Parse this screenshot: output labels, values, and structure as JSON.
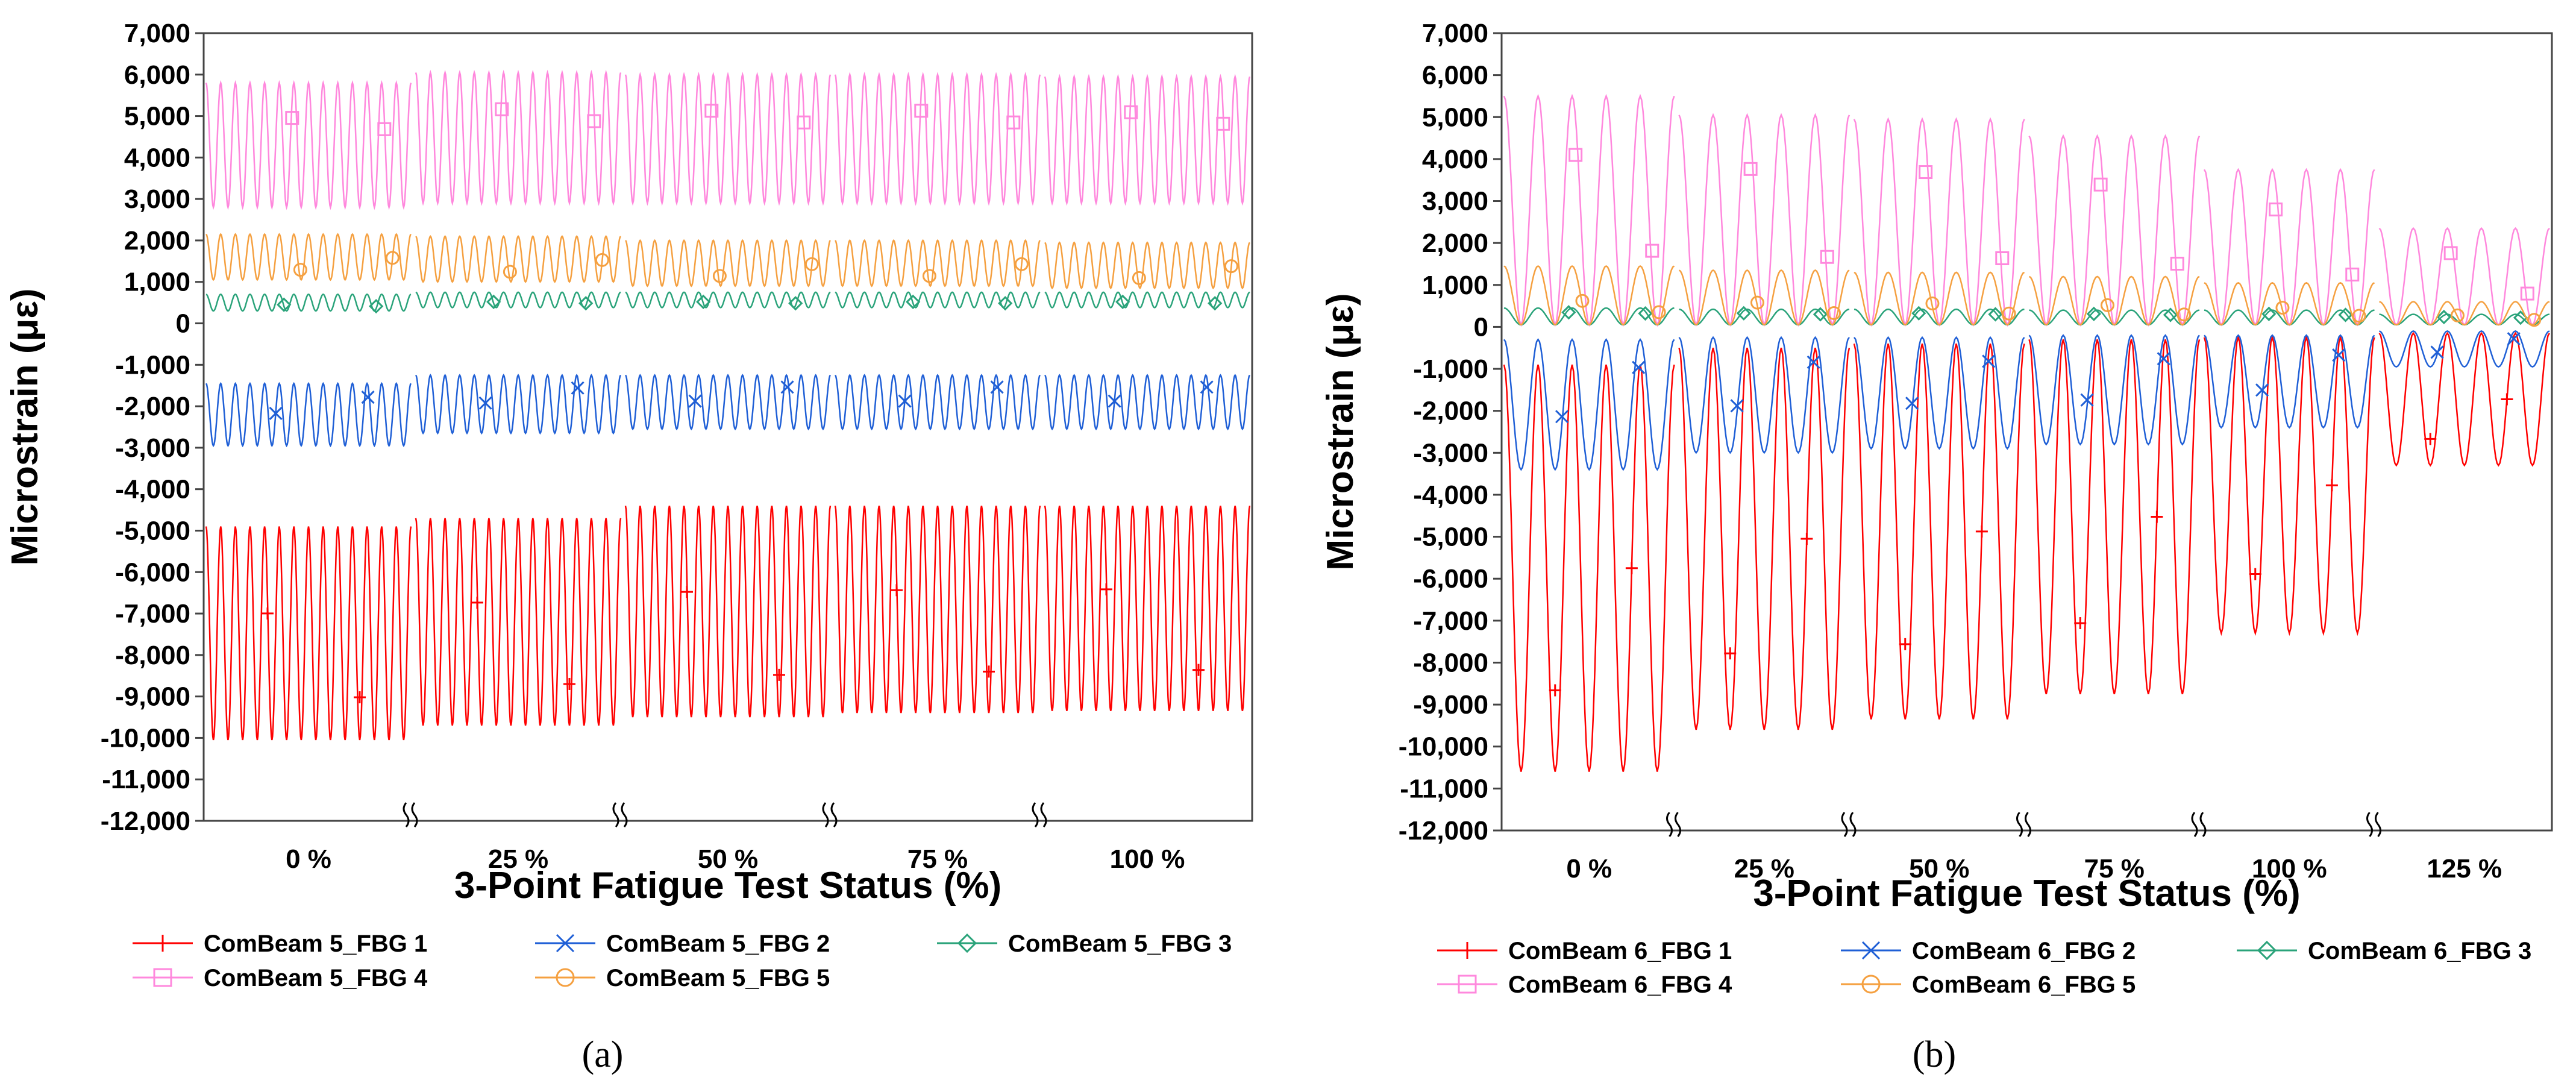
{
  "chart_data": [
    {
      "type": "line",
      "panel": "a",
      "caption": "(a)",
      "xlabel": "3-Point Fatigue Test Status (%)",
      "ylabel": "Microstrain (με)",
      "ylim": [
        -12000,
        7000
      ],
      "ytick_labels": [
        "7,000",
        "6,000",
        "5,000",
        "4,000",
        "3,000",
        "2,000",
        "1,000",
        "0",
        "-1,000",
        "-2,000",
        "-3,000",
        "-4,000",
        "-5,000",
        "-6,000",
        "-7,000",
        "-8,000",
        "-9,000",
        "-10,000",
        "-11,000",
        "-12,000"
      ],
      "categories": [
        "0 %",
        "25 %",
        "50 %",
        "75 %",
        "100 %"
      ],
      "cycles_per_segment": 14,
      "series": [
        {
          "name": "ComBeam 5_FBG 1",
          "color": "#ff0000",
          "marker": "plus",
          "min": [
            -10050,
            -9700,
            -9500,
            -9400,
            -9350
          ],
          "max": [
            -4900,
            -4700,
            -4400,
            -4400,
            -4400
          ]
        },
        {
          "name": "ComBeam 5_FBG 2",
          "color": "#1f5fd6",
          "marker": "x",
          "min": [
            -2950,
            -2650,
            -2550,
            -2550,
            -2550
          ],
          "max": [
            -1450,
            -1250,
            -1250,
            -1250,
            -1250
          ]
        },
        {
          "name": "ComBeam 5_FBG 3",
          "color": "#2aa37a",
          "marker": "diamond",
          "min": [
            300,
            380,
            380,
            380,
            380
          ],
          "max": [
            700,
            750,
            750,
            750,
            750
          ]
        },
        {
          "name": "ComBeam 5_FBG 4",
          "color": "#ff88dd",
          "marker": "square",
          "min": [
            2800,
            2900,
            2900,
            2900,
            2900
          ],
          "max": [
            5800,
            6050,
            6000,
            6000,
            5950
          ]
        },
        {
          "name": "ComBeam 5_FBG 5",
          "color": "#f5a040",
          "marker": "circle",
          "min": [
            1050,
            1000,
            900,
            900,
            850
          ],
          "max": [
            2150,
            2100,
            2000,
            2000,
            1950
          ]
        }
      ],
      "legend": [
        "ComBeam 5_FBG 1",
        "ComBeam 5_FBG 2",
        "ComBeam 5_FBG 3",
        "ComBeam 5_FBG 4",
        "ComBeam 5_FBG 5"
      ]
    },
    {
      "type": "line",
      "panel": "b",
      "caption": "(b)",
      "xlabel": "3-Point Fatigue Test Status (%)",
      "ylabel": "Microstrain (με)",
      "ylim": [
        -12000,
        7000
      ],
      "ytick_labels": [
        "7,000",
        "6,000",
        "5,000",
        "4,000",
        "3,000",
        "2,000",
        "1,000",
        "0",
        "-1,000",
        "-2,000",
        "-3,000",
        "-4,000",
        "-5,000",
        "-6,000",
        "-7,000",
        "-8,000",
        "-9,000",
        "-10,000",
        "-11,000",
        "-12,000"
      ],
      "categories": [
        "0 %",
        "25 %",
        "50 %",
        "75 %",
        "100 %",
        "125 %"
      ],
      "cycles_per_segment": 5,
      "series": [
        {
          "name": "ComBeam 6_FBG 1",
          "color": "#ff0000",
          "marker": "plus",
          "min": [
            -10600,
            -9600,
            -9350,
            -8750,
            -7300,
            -3300
          ],
          "max": [
            -900,
            -500,
            -400,
            -300,
            -250,
            -150
          ]
        },
        {
          "name": "ComBeam 6_FBG 2",
          "color": "#1f5fd6",
          "marker": "x",
          "min": [
            -3400,
            -3000,
            -2900,
            -2800,
            -2400,
            -950
          ],
          "max": [
            -300,
            -250,
            -250,
            -200,
            -200,
            -100
          ]
        },
        {
          "name": "ComBeam 6_FBG 3",
          "color": "#2aa37a",
          "marker": "diamond",
          "min": [
            50,
            50,
            50,
            50,
            50,
            50
          ],
          "max": [
            450,
            420,
            420,
            400,
            400,
            300
          ]
        },
        {
          "name": "ComBeam 6_FBG 4",
          "color": "#ff88dd",
          "marker": "square",
          "min": [
            50,
            50,
            50,
            50,
            50,
            50
          ],
          "max": [
            5500,
            5050,
            4950,
            4550,
            3750,
            2350
          ]
        },
        {
          "name": "ComBeam 6_FBG 5",
          "color": "#f5a040",
          "marker": "circle",
          "min": [
            50,
            50,
            50,
            50,
            50,
            50
          ],
          "max": [
            1450,
            1350,
            1300,
            1200,
            1050,
            600
          ]
        }
      ],
      "legend": [
        "ComBeam 6_FBG 1",
        "ComBeam 6_FBG 2",
        "ComBeam 6_FBG 3",
        "ComBeam 6_FBG 4",
        "ComBeam 6_FBG 5"
      ]
    }
  ]
}
